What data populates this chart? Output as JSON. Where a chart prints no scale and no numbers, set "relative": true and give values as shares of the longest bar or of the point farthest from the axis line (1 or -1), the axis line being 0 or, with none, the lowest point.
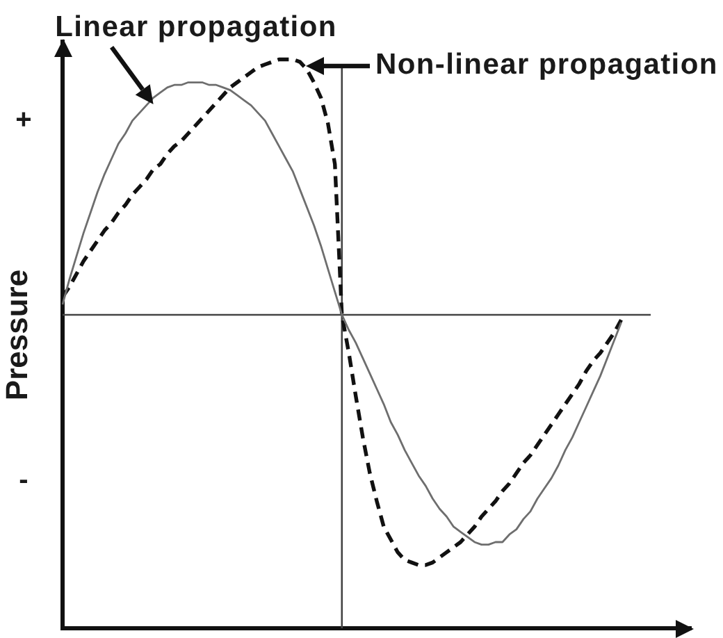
{
  "chart_data": {
    "type": "line",
    "ylabel": "Pressure",
    "relative": true,
    "tick_labels": false,
    "marker": "none",
    "annotations": [
      "+",
      "-"
    ],
    "ref_lines": [
      {
        "axis": "y",
        "value": 0,
        "color": "#444444"
      }
    ],
    "categories": [
      null,
      null,
      null,
      null,
      null,
      null,
      null,
      null,
      null,
      null,
      null,
      null,
      null,
      null,
      null,
      null,
      null,
      null,
      null,
      null,
      null,
      null,
      null,
      null,
      null,
      null,
      null,
      null,
      null,
      null,
      null,
      null,
      null,
      null,
      null,
      null,
      null,
      null,
      null,
      null,
      null,
      null,
      null,
      null,
      null,
      null,
      null,
      null,
      null,
      null,
      null,
      null,
      null,
      null,
      null,
      null,
      null,
      null,
      null,
      null,
      null,
      null,
      null,
      null,
      null,
      null,
      null,
      null,
      null,
      null,
      null,
      null,
      null,
      null,
      null,
      null,
      null,
      null,
      null,
      null,
      null,
      null,
      null,
      null,
      null,
      null,
      null,
      null,
      null,
      null,
      null
    ],
    "series": [
      {
        "name": "Linear propagation",
        "color": "#6e6e6e",
        "line_style": "solid",
        "values": [
          0.04,
          0.14,
          0.23,
          0.32,
          0.4,
          0.48,
          0.55,
          0.61,
          0.67,
          0.71,
          0.76,
          0.79,
          0.82,
          0.85,
          0.87,
          0.89,
          0.9,
          0.9,
          0.91,
          0.91,
          0.91,
          0.9,
          0.9,
          0.89,
          0.88,
          0.86,
          0.84,
          0.82,
          0.79,
          0.76,
          0.71,
          0.66,
          0.61,
          0.56,
          0.49,
          0.42,
          0.35,
          0.27,
          0.18,
          0.09,
          0,
          -0.06,
          -0.11,
          -0.17,
          -0.23,
          -0.29,
          -0.35,
          -0.42,
          -0.47,
          -0.53,
          -0.58,
          -0.63,
          -0.67,
          -0.72,
          -0.76,
          -0.79,
          -0.83,
          -0.85,
          -0.87,
          -0.89,
          -0.9,
          -0.9,
          -0.89,
          -0.89,
          -0.86,
          -0.84,
          -0.8,
          -0.77,
          -0.72,
          -0.68,
          -0.64,
          -0.59,
          -0.53,
          -0.48,
          -0.42,
          -0.36,
          -0.3,
          -0.24,
          -0.17,
          -0.1,
          -0.03,
          null,
          null,
          null,
          null,
          null,
          null,
          null,
          null,
          null,
          null
        ]
      },
      {
        "name": "Non-linear propagation",
        "color": "#111111",
        "line_style": "dashed",
        "values": [
          0.07,
          0.11,
          0.16,
          0.21,
          0.25,
          0.29,
          0.33,
          0.36,
          0.4,
          0.43,
          0.47,
          0.5,
          0.53,
          0.57,
          0.59,
          0.63,
          0.66,
          0.68,
          0.71,
          0.74,
          0.77,
          0.8,
          0.83,
          0.86,
          0.89,
          0.91,
          0.93,
          0.95,
          0.97,
          0.98,
          0.99,
          1,
          1,
          1,
          0.99,
          0.96,
          0.91,
          0.85,
          0.75,
          0.59,
          0,
          -0.15,
          -0.32,
          -0.48,
          -0.62,
          -0.73,
          -0.83,
          -0.88,
          -0.93,
          -0.96,
          -0.97,
          -0.98,
          -0.98,
          -0.97,
          -0.95,
          -0.93,
          -0.91,
          -0.89,
          -0.86,
          -0.83,
          -0.79,
          -0.76,
          -0.73,
          -0.69,
          -0.66,
          -0.62,
          -0.58,
          -0.55,
          -0.51,
          -0.47,
          -0.43,
          -0.39,
          -0.35,
          -0.31,
          -0.27,
          -0.22,
          -0.18,
          -0.15,
          -0.11,
          -0.07,
          -0.02,
          null,
          null,
          null,
          null,
          null,
          null,
          null,
          null,
          null,
          null
        ]
      }
    ]
  }
}
